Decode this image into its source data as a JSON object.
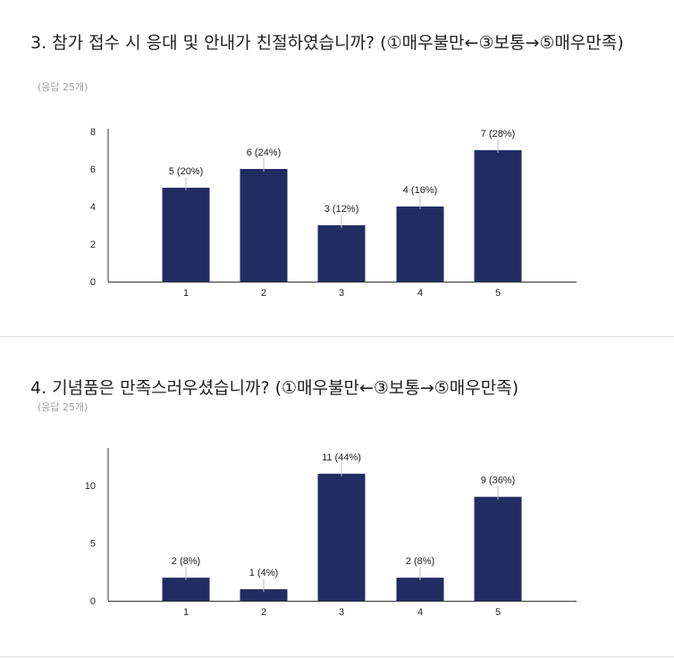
{
  "questions": [
    {
      "title": "3. 참가 접수 시 응대 및 안내가 친절하였습니까? (①매우불만←③보통→⑤매우만족)",
      "response_count": "(응답 25개)"
    },
    {
      "title": "4. 기념품은 만족스러우셨습니까? (①매우불만←③보통→⑤매우만족)",
      "response_count": "(응답 25개)"
    }
  ],
  "colors": {
    "bar": "#212c63",
    "axis": "#333333",
    "text": "#212121",
    "muted": "#9e9e9e"
  },
  "chart_data": [
    {
      "type": "bar",
      "categories": [
        "1",
        "2",
        "3",
        "4",
        "5"
      ],
      "values": [
        5,
        6,
        3,
        4,
        7
      ],
      "data_labels": [
        "5 (20%)",
        "6 (24%)",
        "3 (12%)",
        "4 (16%)",
        "7 (28%)"
      ],
      "yticks": [
        "0",
        "2",
        "4",
        "6",
        "8"
      ],
      "ylim": [
        0,
        8
      ],
      "grid": false,
      "legend": "none"
    },
    {
      "type": "bar",
      "categories": [
        "1",
        "2",
        "3",
        "4",
        "5"
      ],
      "values": [
        2,
        1,
        11,
        2,
        9
      ],
      "data_labels": [
        "2 (8%)",
        "1 (4%)",
        "11 (44%)",
        "2 (8%)",
        "9 (36%)"
      ],
      "yticks": [
        "0",
        "5",
        "10"
      ],
      "ylim": [
        0,
        13
      ],
      "grid": false,
      "legend": "none"
    }
  ]
}
